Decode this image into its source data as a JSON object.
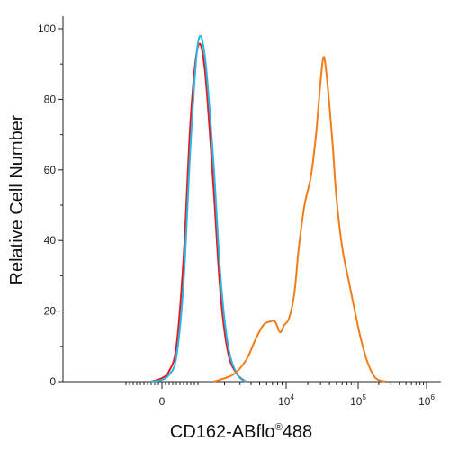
{
  "chart_data": {
    "type": "line",
    "chart_kind": "flow cytometry histogram overlay",
    "xlabel": "CD162-ABflo®488",
    "xlabel_parts": {
      "main": "CD162-ABflo",
      "sup": "®",
      "tail": "488"
    },
    "ylabel": "Relative Cell Number",
    "x_scale": "biexponential (linear around 0, log above ~10^3)",
    "xlim": [
      -1000,
      1000000
    ],
    "ylim": [
      0,
      100
    ],
    "y_ticks": [
      0,
      20,
      40,
      60,
      80,
      100
    ],
    "x_ticks": [
      {
        "value": 0,
        "base": "0",
        "exp": ""
      },
      {
        "value": 10000,
        "base": "10",
        "exp": "4"
      },
      {
        "value": 100000,
        "base": "10",
        "exp": "5"
      },
      {
        "value": 1000000,
        "base": "10",
        "exp": "6"
      }
    ],
    "grid": false,
    "legend": "none",
    "series": [
      {
        "color": "#e8191e",
        "x": [
          -300,
          0,
          200,
          400,
          600,
          800,
          1000,
          1200,
          1500,
          1800,
          2200,
          2800,
          3500
        ],
        "values": [
          0,
          1,
          3,
          10,
          35,
          75,
          95,
          88,
          55,
          25,
          8,
          2,
          0
        ]
      },
      {
        "color": "#29b6e6",
        "x": [
          -300,
          0,
          200,
          400,
          600,
          800,
          1000,
          1200,
          1500,
          1800,
          2200,
          2800,
          3500
        ],
        "values": [
          0,
          0.5,
          2,
          7,
          28,
          68,
          96,
          92,
          62,
          30,
          10,
          2,
          0
        ]
      },
      {
        "color": "#f07d1a",
        "x": [
          1500,
          2500,
          3500,
          4500,
          5500,
          6500,
          7500,
          8500,
          9500,
          11000,
          13000,
          15000,
          18000,
          22000,
          26000,
          30000,
          33000,
          36000,
          40000,
          45000,
          50000,
          60000,
          75000,
          90000,
          110000,
          140000,
          180000,
          250000
        ],
        "values": [
          0,
          2,
          6,
          12,
          16,
          17,
          17,
          14,
          16,
          18,
          25,
          38,
          50,
          58,
          70,
          85,
          92,
          88,
          78,
          65,
          52,
          38,
          28,
          20,
          12,
          5,
          1,
          0
        ]
      }
    ]
  }
}
